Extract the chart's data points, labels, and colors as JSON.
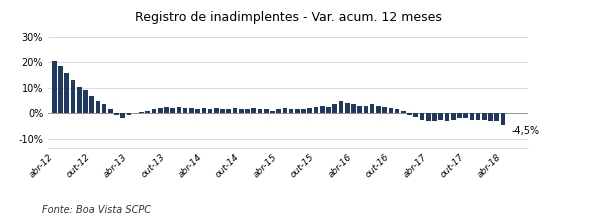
{
  "title": "Registro de inadimplentes - Var. acum. 12 meses",
  "source": "Fonte: Boa Vista SCPC",
  "bar_color": "#1F3864",
  "annotation_text": "-4,5%",
  "ylim": [
    -0.135,
    0.335
  ],
  "yticks": [
    -0.1,
    0.0,
    0.1,
    0.2,
    0.3
  ],
  "xtick_labels": [
    "abr-12",
    "out-12",
    "abr-13",
    "out-13",
    "abr-14",
    "out-14",
    "abr-15",
    "out-15",
    "abr-16",
    "out-16",
    "abr-17",
    "out-17",
    "abr-18"
  ],
  "values": [
    0.205,
    0.185,
    0.16,
    0.13,
    0.105,
    0.09,
    0.07,
    0.05,
    0.035,
    0.015,
    -0.005,
    -0.02,
    -0.005,
    0.0,
    0.005,
    0.01,
    0.015,
    0.02,
    0.025,
    0.02,
    0.025,
    0.02,
    0.02,
    0.015,
    0.02,
    0.015,
    0.02,
    0.015,
    0.015,
    0.02,
    0.015,
    0.015,
    0.02,
    0.015,
    0.015,
    0.01,
    0.015,
    0.02,
    0.015,
    0.015,
    0.015,
    0.02,
    0.025,
    0.03,
    0.025,
    0.035,
    0.05,
    0.04,
    0.035,
    0.03,
    0.03,
    0.035,
    0.03,
    0.025,
    0.02,
    0.015,
    0.01,
    -0.005,
    -0.015,
    -0.025,
    -0.03,
    -0.03,
    -0.028,
    -0.03,
    -0.025,
    -0.02,
    -0.02,
    -0.025,
    -0.025,
    -0.028,
    -0.03,
    -0.03,
    -0.045
  ],
  "background_color": "#ffffff",
  "grid_color": "#cccccc",
  "border_color": "#cccccc"
}
